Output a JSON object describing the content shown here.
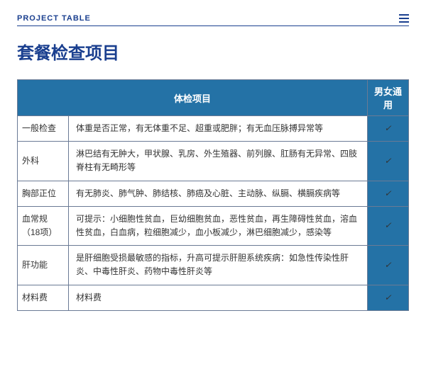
{
  "header": {
    "label": "PROJECT TABLE"
  },
  "title": "套餐检查项目",
  "table": {
    "header_item": "体检项目",
    "header_common": "男女通用",
    "check_mark": "✓",
    "colors": {
      "header_bg": "#2472a6",
      "header_text": "#ffffff",
      "border": "#6a7a95",
      "check_bg": "#2472a6",
      "check_text": "#0b2c4a",
      "body_text": "#333333",
      "accent": "#1a3f8f",
      "page_bg": "#ffffff"
    },
    "rows": [
      {
        "name": "一般检查",
        "desc": "体重是否正常，有无体重不足、超重或肥胖；有无血压脉搏异常等"
      },
      {
        "name": "外科",
        "desc": "淋巴结有无肿大，甲状腺、乳房、外生殖器、前列腺、肛肠有无异常、四肢脊柱有无畸形等"
      },
      {
        "name": "胸部正位",
        "desc": "有无肺炎、肺气肿、肺结核、肺癌及心脏、主动脉、纵膈、横膈疾病等"
      },
      {
        "name": "血常规（18项）",
        "desc": "可提示：小细胞性贫血，巨幼细胞贫血，恶性贫血，再生障碍性贫血，溶血性贫血，白血病，粒细胞减少，血小板减少，淋巴细胞减少，感染等"
      },
      {
        "name": "肝功能",
        "desc": "是肝细胞受损最敏感的指标，升高可提示肝胆系统疾病：如急性传染性肝炎、中毒性肝炎、药物中毒性肝炎等"
      },
      {
        "name": "材料费",
        "desc": "材料费"
      }
    ]
  }
}
